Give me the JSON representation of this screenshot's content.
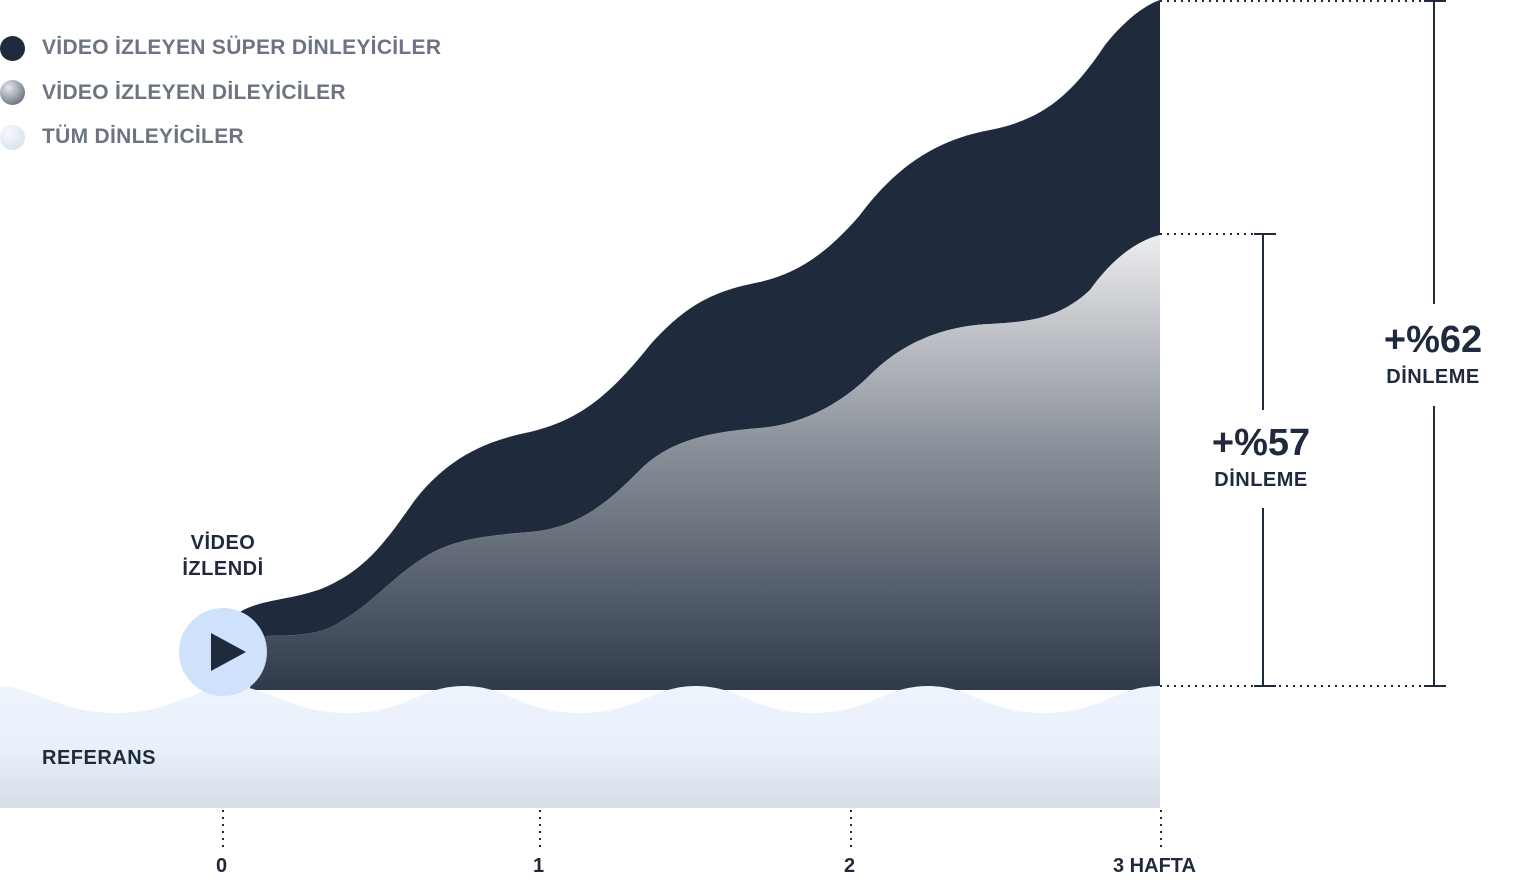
{
  "legend": [
    {
      "label": "VİDEO İZLEYEN SÜPER DİNLEYİCİLER",
      "color": "#1f2a3c"
    },
    {
      "label": "VİDEO İZLEYEN DİLEYİCİLER",
      "color": "#7a808a"
    },
    {
      "label": "TÜM DİNLEYİCİLER",
      "color": "#e3ebf5"
    }
  ],
  "annotations": {
    "video_watched_line1": "VİDEO",
    "video_watched_line2": "İZLENDİ",
    "baseline_label": "REFERANS",
    "gain_viewers_value": "+%57",
    "gain_viewers_label": "DİNLEME",
    "gain_super_value": "+%62",
    "gain_super_label": "DİNLEME"
  },
  "icons": {
    "play": "play-icon"
  },
  "chart_data": {
    "type": "area",
    "x_ticks": [
      "0",
      "1",
      "2",
      "3 HAFTA"
    ],
    "series": [
      {
        "name": "VİDEO İZLEYEN SÜPER DİNLEYİCİLER",
        "color": "#1f2a3c",
        "x": [
          0,
          3
        ],
        "uplift_percent": [
          0,
          62
        ]
      },
      {
        "name": "VİDEO İZLEYEN DİLEYİCİLER",
        "color": "#7a808a",
        "x": [
          0,
          3
        ],
        "uplift_percent": [
          0,
          57
        ]
      },
      {
        "name": "TÜM DİNLEYİCİLER",
        "color": "#e3ebf5",
        "x": [
          0,
          3
        ],
        "uplift_percent": [
          0,
          0
        ]
      }
    ]
  }
}
